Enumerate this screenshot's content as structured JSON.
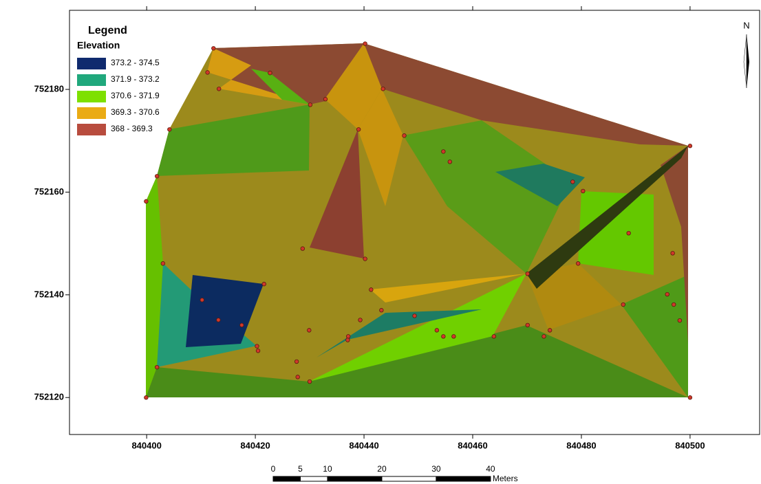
{
  "map": {
    "xlim": [
      840385.8,
      840512.8
    ],
    "ylim": [
      752112.8,
      752195.4
    ],
    "xticks": [
      840400,
      840420,
      840440,
      840460,
      840480,
      840500
    ],
    "yticks": [
      752120,
      752140,
      752160,
      752180
    ],
    "points": {
      "x": [
        840399.9,
        840399.9,
        840401.9,
        840403.0,
        840404.2,
        840401.9,
        840411.2,
        840412.3,
        840413.3,
        840422.7,
        840410.2,
        840413.2,
        840417.5,
        840421.6,
        840420.3,
        840420.5,
        840427.6,
        840427.8,
        840430.0,
        840429.9,
        840428.7,
        840430.1,
        840432.9,
        840439.0,
        840440.2,
        840443.5,
        840447.4,
        840440.2,
        840441.3,
        840443.2,
        840439.3,
        840437.1,
        840437.0,
        840449.3,
        840453.4,
        840454.6,
        840456.5,
        840454.6,
        840455.8,
        840463.9,
        840470.1,
        840470.1,
        840473.1,
        840474.2,
        840478.4,
        840480.3,
        840479.4,
        840488.7,
        840487.7,
        840495.8,
        840496.8,
        840497.0,
        840498.1,
        840500.0,
        840500.0
      ],
      "y": [
        752120.0,
        752158.2,
        752163.1,
        752146.1,
        752172.2,
        752125.9,
        752183.3,
        752188.0,
        752180.1,
        752183.2,
        752139.0,
        752135.1,
        752134.1,
        752142.1,
        752130.0,
        752129.1,
        752127.0,
        752124.0,
        752123.1,
        752133.1,
        752149.0,
        752177.0,
        752178.1,
        752172.2,
        752188.9,
        752180.1,
        752171.0,
        752147.0,
        752141.0,
        752137.0,
        752135.1,
        752131.9,
        752131.2,
        752135.9,
        752133.1,
        752131.9,
        752131.9,
        752167.9,
        752165.9,
        752131.9,
        752144.1,
        752134.1,
        752131.9,
        752133.1,
        752162.0,
        752160.2,
        752146.1,
        752152.0,
        752138.1,
        752140.1,
        752148.1,
        752138.1,
        752135.0,
        752169.0,
        752120.0
      ]
    }
  },
  "legend": {
    "title": "Legend",
    "subtitle": "Elevation",
    "classes": [
      {
        "label": "373.2 - 374.5",
        "color": "#0f2a6e"
      },
      {
        "label": "371.9 - 373.2",
        "color": "#20a87c"
      },
      {
        "label": "370.6 - 371.9",
        "color": "#7ee000"
      },
      {
        "label": "369.3 - 370.6",
        "color": "#eaab14"
      },
      {
        "label": "368 - 369.3",
        "color": "#b84c3e"
      }
    ]
  },
  "north_arrow": {
    "label": "N"
  },
  "scale_bar": {
    "ticks": [
      0,
      5,
      10,
      20,
      30,
      40
    ],
    "unit": "Meters"
  }
}
